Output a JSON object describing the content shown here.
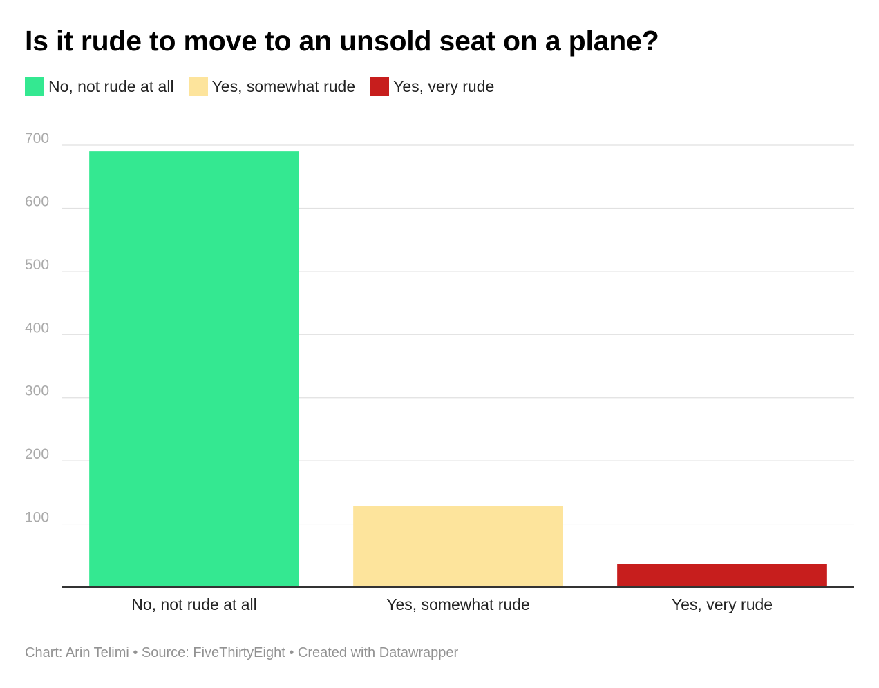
{
  "chart_data": {
    "type": "bar",
    "title": "Is it rude to move to an unsold seat on a plane?",
    "categories": [
      "No, not rude at all",
      "Yes, somewhat rude",
      "Yes, very rude"
    ],
    "values": [
      690,
      128,
      37
    ],
    "colors": [
      "#34e891",
      "#fde49c",
      "#c71e1d"
    ],
    "legend": {
      "placement": "top-left",
      "entries": [
        "No, not rude at all",
        "Yes, somewhat rude",
        "Yes, very rude"
      ]
    },
    "yticks": [
      100,
      200,
      300,
      400,
      500,
      600,
      700
    ],
    "ylim": [
      0,
      700
    ],
    "grid": true,
    "xlabel": "",
    "ylabel": ""
  },
  "footer": {
    "credit": "Chart: Arin Telimi • Source: FiveThirtyEight • Created with Datawrapper"
  }
}
